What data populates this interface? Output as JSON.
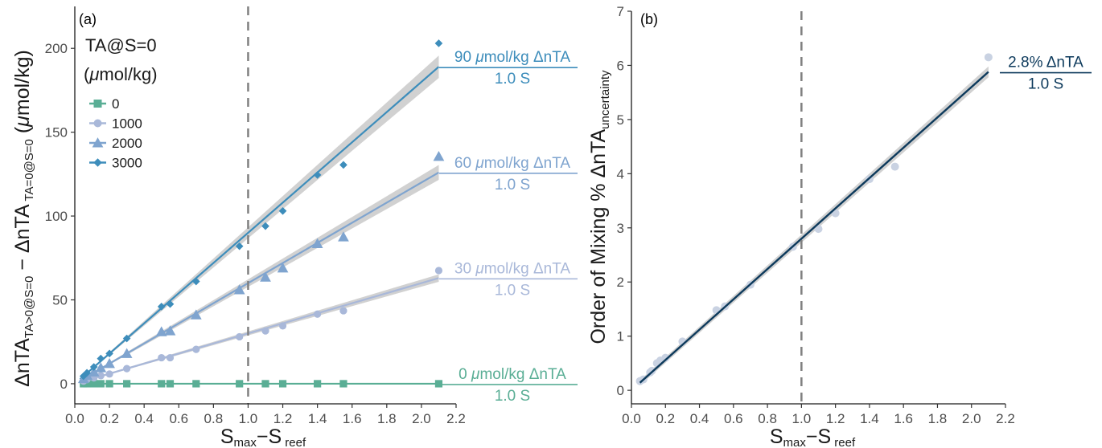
{
  "chart_data": [
    {
      "panel": "(a)",
      "type": "scatter",
      "xlabel": {
        "main": "S",
        "sub1": "max",
        "mid": "−S",
        "sub2": " reef"
      },
      "ylabel": {
        "p1": "ΔnTA",
        "s1": "TA>0@S=0",
        "p2": " − ΔnTA",
        "s2": " TA=0@S=0",
        "p3": " (",
        "mu": "μ",
        "p4": "mol/kg)"
      },
      "xlim": [
        0,
        2.2
      ],
      "ylim": [
        -12,
        225
      ],
      "xticks": [
        "0.0",
        "0.2",
        "0.4",
        "0.6",
        "0.8",
        "1.0",
        "1.2",
        "1.4",
        "1.6",
        "1.8",
        "2.0",
        "2.2"
      ],
      "yticks": [
        "0",
        "50",
        "100",
        "150",
        "200"
      ],
      "reference_x": 1.0,
      "legend": {
        "title_line1": "TA@S=0",
        "title_line2_mu": "μ",
        "title_line2_rest": "mol/kg)",
        "title_line2_open": "(",
        "position": "top-left"
      },
      "series": [
        {
          "name": "0",
          "marker": "square",
          "color": "#5aae95",
          "slope": 0,
          "intercept": 0,
          "points": [
            [
              0.05,
              0
            ],
            [
              0.07,
              0
            ],
            [
              0.11,
              0
            ],
            [
              0.15,
              0
            ],
            [
              0.2,
              0
            ],
            [
              0.3,
              0
            ],
            [
              0.5,
              0
            ],
            [
              0.55,
              0
            ],
            [
              0.7,
              0
            ],
            [
              0.95,
              0
            ],
            [
              1.1,
              0
            ],
            [
              1.2,
              0
            ],
            [
              1.4,
              0
            ],
            [
              1.55,
              0
            ],
            [
              2.1,
              0
            ]
          ],
          "annotation": {
            "value": "0 ",
            "mu": "μ",
            "unit": "mol/kg ΔnTA",
            "sub": "1.0 S"
          }
        },
        {
          "name": "1000",
          "marker": "circle",
          "color": "#a9b8d9",
          "slope": 30,
          "intercept": 0,
          "points": [
            [
              0.05,
              1.5
            ],
            [
              0.07,
              2.5
            ],
            [
              0.11,
              3.5
            ],
            [
              0.15,
              4.8
            ],
            [
              0.2,
              5.8
            ],
            [
              0.3,
              9
            ],
            [
              0.5,
              15.5
            ],
            [
              0.55,
              15.5
            ],
            [
              0.7,
              20.5
            ],
            [
              0.95,
              28
            ],
            [
              1.1,
              31.5
            ],
            [
              1.2,
              34.5
            ],
            [
              1.4,
              41.5
            ],
            [
              1.55,
              43.5
            ],
            [
              2.1,
              67.5
            ]
          ],
          "annotation": {
            "value": "30 ",
            "mu": "μ",
            "unit": "mol/kg ΔnTA",
            "sub": "1.0 S"
          }
        },
        {
          "name": "2000",
          "marker": "triangle",
          "color": "#7fa4cf",
          "slope": 60,
          "intercept": 0,
          "points": [
            [
              0.05,
              3
            ],
            [
              0.07,
              5
            ],
            [
              0.11,
              7
            ],
            [
              0.15,
              9.5
            ],
            [
              0.2,
              12
            ],
            [
              0.3,
              18
            ],
            [
              0.5,
              31
            ],
            [
              0.55,
              31.5
            ],
            [
              0.7,
              41
            ],
            [
              0.95,
              56
            ],
            [
              1.1,
              63.5
            ],
            [
              1.2,
              69
            ],
            [
              1.4,
              83.5
            ],
            [
              1.55,
              87.5
            ],
            [
              2.1,
              135.5
            ]
          ],
          "annotation": {
            "value": "60 ",
            "mu": "μ",
            "unit": "mol/kg ΔnTA",
            "sub": "1.0 S"
          }
        },
        {
          "name": "3000",
          "marker": "diamond",
          "color": "#3d8dbb",
          "slope": 90,
          "intercept": 0,
          "points": [
            [
              0.05,
              4.5
            ],
            [
              0.07,
              6.5
            ],
            [
              0.11,
              10
            ],
            [
              0.15,
              15
            ],
            [
              0.2,
              18
            ],
            [
              0.3,
              27
            ],
            [
              0.5,
              46
            ],
            [
              0.55,
              47.5
            ],
            [
              0.7,
              61
            ],
            [
              0.95,
              82
            ],
            [
              1.1,
              94
            ],
            [
              1.2,
              103
            ],
            [
              1.4,
              124.5
            ],
            [
              1.55,
              130.5
            ],
            [
              2.1,
              203
            ]
          ],
          "annotation": {
            "value": "90 ",
            "mu": "μ",
            "unit": "mol/kg ΔnTA",
            "sub": "1.0 S"
          }
        }
      ]
    },
    {
      "panel": "(b)",
      "type": "scatter",
      "xlabel": {
        "main": "S",
        "sub1": "max",
        "mid": "−S",
        "sub2": " reef"
      },
      "ylabel": {
        "p1": "Order of Mixing % ΔnTA",
        "s1": "uncertainty"
      },
      "xlim": [
        0,
        2.2
      ],
      "ylim": [
        -0.25,
        7
      ],
      "xticks": [
        "0.0",
        "0.2",
        "0.4",
        "0.6",
        "0.8",
        "1.0",
        "1.2",
        "1.4",
        "1.6",
        "1.8",
        "2.0",
        "2.2"
      ],
      "yticks": [
        "0",
        "1",
        "2",
        "3",
        "4",
        "5",
        "6",
        "7"
      ],
      "reference_x": 1.0,
      "fit": {
        "slope": 2.8,
        "intercept": 0,
        "color": "#0d3a5c"
      },
      "point_color": "#c9d2e2",
      "points": [
        [
          0.05,
          0.17
        ],
        [
          0.07,
          0.2
        ],
        [
          0.11,
          0.33
        ],
        [
          0.12,
          0.36
        ],
        [
          0.15,
          0.5
        ],
        [
          0.17,
          0.55
        ],
        [
          0.2,
          0.6
        ],
        [
          0.3,
          0.9
        ],
        [
          0.5,
          1.48
        ],
        [
          0.55,
          1.55
        ],
        [
          0.7,
          1.95
        ],
        [
          0.95,
          2.65
        ],
        [
          1.1,
          2.98
        ],
        [
          1.2,
          3.27
        ],
        [
          1.4,
          3.9
        ],
        [
          1.55,
          4.13
        ],
        [
          2.1,
          6.15
        ]
      ],
      "annotation": {
        "value": "2.8% ΔnTA",
        "sub": "1.0 S"
      }
    }
  ]
}
